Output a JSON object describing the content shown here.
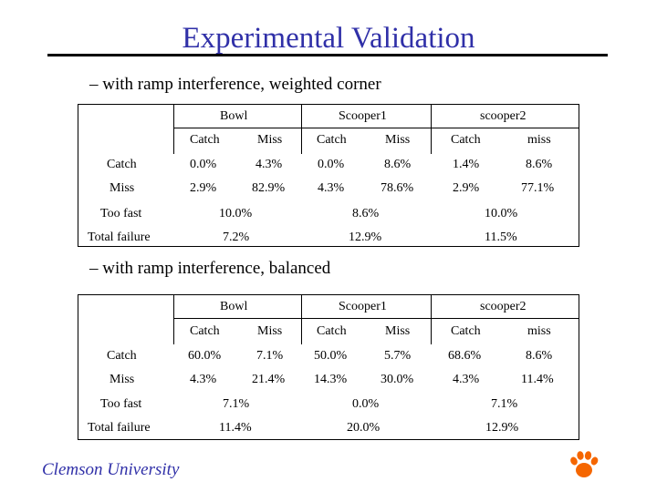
{
  "slide": {
    "title": "Experimental Validation",
    "subtitle1": "– with ramp interference, weighted corner",
    "subtitle2": "– with ramp interference, balanced",
    "footer": "Clemson University"
  },
  "table1": {
    "groups": [
      "Bowl",
      "Scooper1",
      "scooper2"
    ],
    "subheaders": [
      "Catch",
      "Miss",
      "Catch",
      "Miss",
      "Catch",
      "miss"
    ],
    "rows": [
      {
        "label": "Catch",
        "values": [
          "0.0%",
          "4.3%",
          "0.0%",
          "8.6%",
          "1.4%",
          "8.6%"
        ]
      },
      {
        "label": "Miss",
        "values": [
          "2.9%",
          "82.9%",
          "4.3%",
          "78.6%",
          "2.9%",
          "77.1%"
        ]
      }
    ],
    "merged_rows": [
      {
        "label": "Too fast",
        "values": [
          "10.0%",
          "8.6%",
          "10.0%"
        ]
      },
      {
        "label": "Total failure",
        "values": [
          "7.2%",
          "12.9%",
          "11.5%"
        ]
      }
    ]
  },
  "table2": {
    "groups": [
      "Bowl",
      "Scooper1",
      "scooper2"
    ],
    "subheaders": [
      "Catch",
      "Miss",
      "Catch",
      "Miss",
      "Catch",
      "miss"
    ],
    "rows": [
      {
        "label": "Catch",
        "values": [
          "60.0%",
          "7.1%",
          "50.0%",
          "5.7%",
          "68.6%",
          "8.6%"
        ]
      },
      {
        "label": "Miss",
        "values": [
          "4.3%",
          "21.4%",
          "14.3%",
          "30.0%",
          "4.3%",
          "11.4%"
        ]
      }
    ],
    "merged_rows": [
      {
        "label": "Too fast",
        "values": [
          "7.1%",
          "0.0%",
          "7.1%"
        ]
      },
      {
        "label": "Total failure",
        "values": [
          "11.4%",
          "20.0%",
          "12.9%"
        ]
      }
    ]
  },
  "colors": {
    "title": "#3030a8",
    "logo": "#f56600"
  },
  "icons": {
    "logo": "tiger-paw-icon"
  }
}
